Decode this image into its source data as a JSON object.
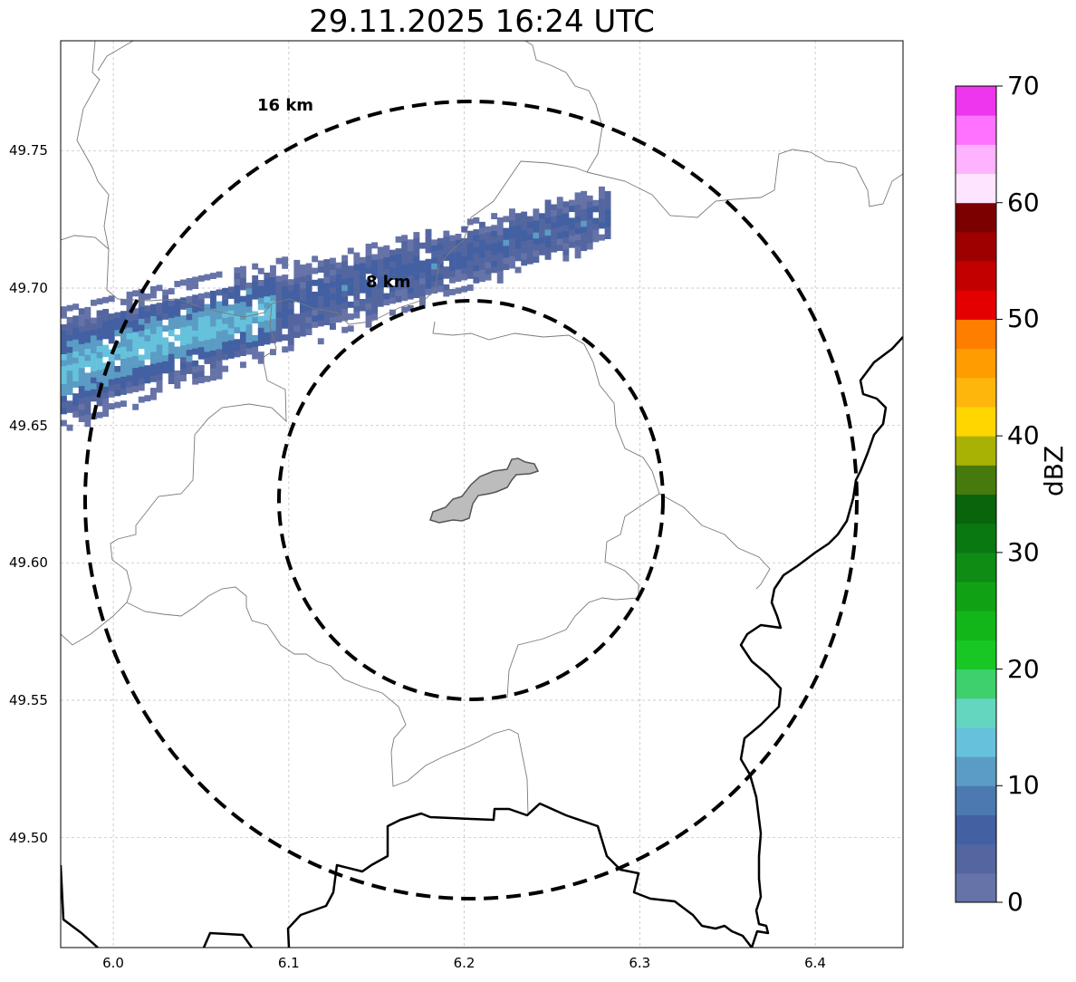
{
  "title": "29.11.2025 16:24 UTC",
  "map": {
    "lon_range": [
      5.97,
      6.45
    ],
    "lat_range": [
      49.46,
      49.79
    ],
    "x_ticks": [
      "6.0",
      "6.1",
      "6.2",
      "6.3",
      "6.4"
    ],
    "x_tick_values": [
      6.0,
      6.1,
      6.2,
      6.3,
      6.4
    ],
    "y_ticks": [
      "49.50",
      "49.55",
      "49.60",
      "49.65",
      "49.70",
      "49.75"
    ],
    "y_tick_values": [
      49.5,
      49.55,
      49.6,
      49.65,
      49.7,
      49.75
    ],
    "grid": true,
    "center": {
      "lon": 6.2,
      "lat": 49.623
    },
    "rings": [
      {
        "label": "8 km",
        "radius_km": 8
      },
      {
        "label": "16 km",
        "radius_km": 16
      }
    ]
  },
  "colorbar": {
    "label": "dBZ",
    "min": 0,
    "max": 70,
    "ticks": [
      "0",
      "10",
      "20",
      "30",
      "40",
      "50",
      "60",
      "70"
    ],
    "colors": [
      "#6673a8",
      "#5466a0",
      "#4260a2",
      "#4b79b0",
      "#5b9cc4",
      "#66c2dc",
      "#64d6c0",
      "#3ed06c",
      "#18c724",
      "#12b618",
      "#10a214",
      "#0e8c14",
      "#0a7810",
      "#0a640c",
      "#467a0c",
      "#a8b204",
      "#ffd600",
      "#ffb60c",
      "#ff9c00",
      "#ff7e00",
      "#e40000",
      "#c20000",
      "#9e0000",
      "#7c0000",
      "#ffe4ff",
      "#ffb2ff",
      "#ff72ff",
      "#ee36ee"
    ]
  },
  "radar_echo": {
    "dbz_levels": [
      2,
      4,
      7,
      10,
      13
    ]
  }
}
